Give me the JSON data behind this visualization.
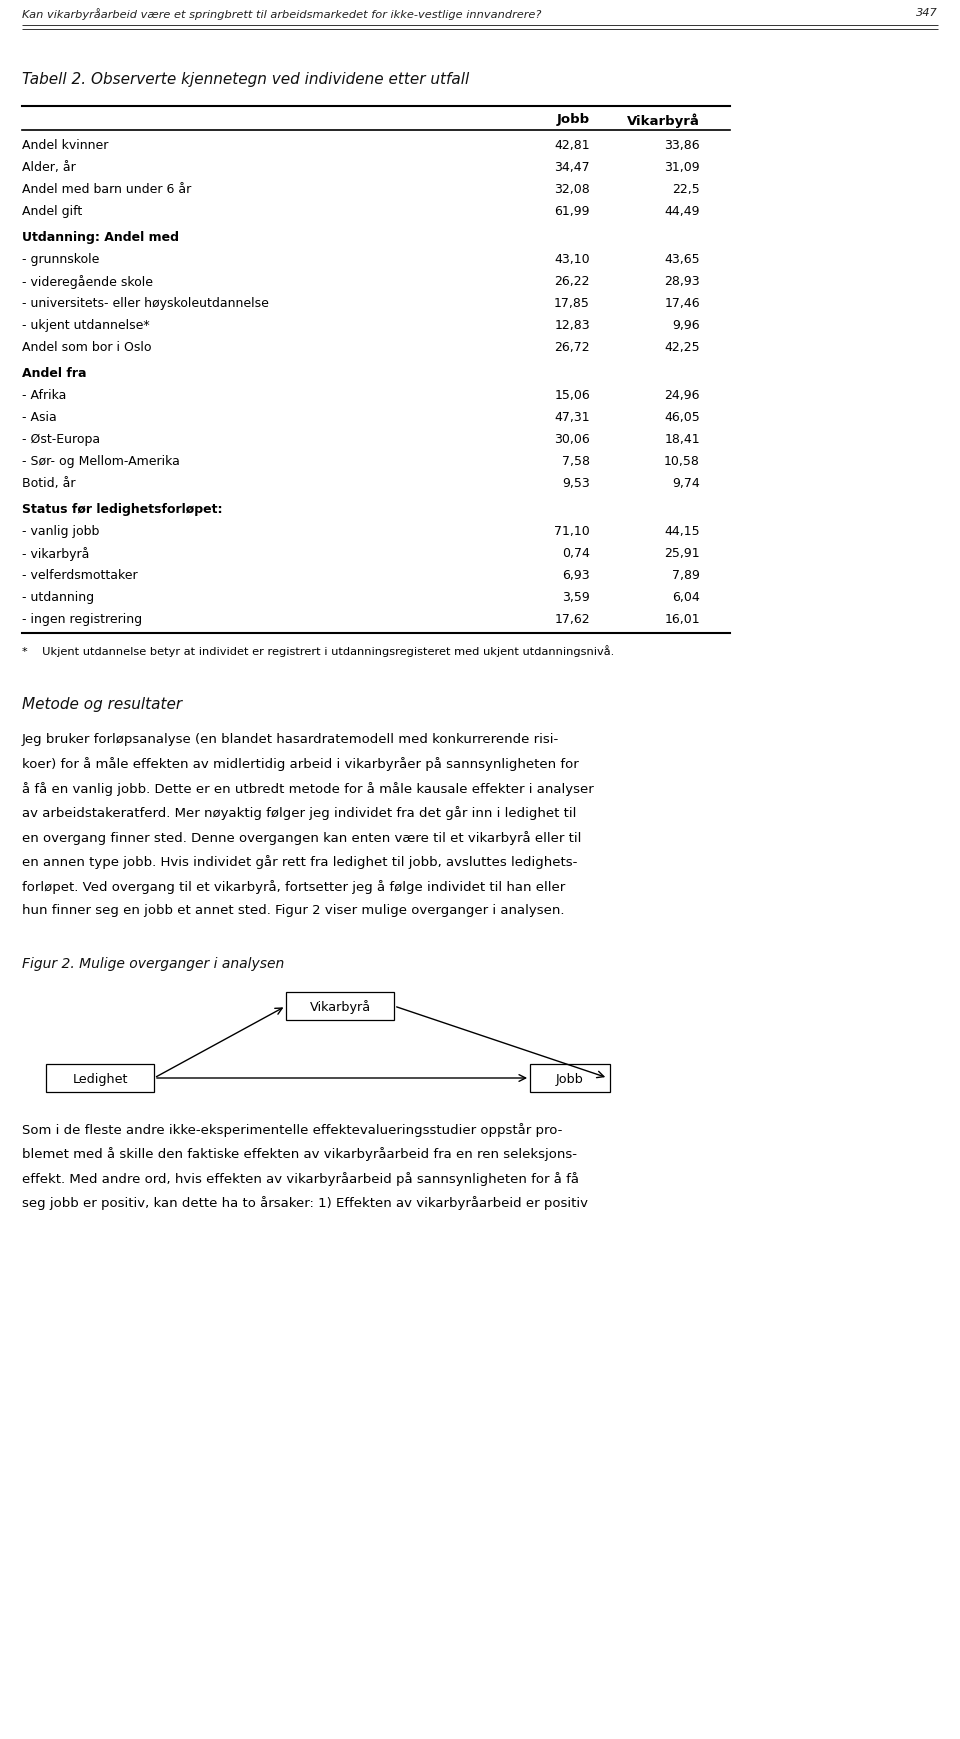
{
  "page_title": "Kan vikarbyråarbeid være et springbrett til arbeidsmarkedet for ikke-vestlige innvandrere?",
  "page_number": "347",
  "table_title": "Tabell 2. Observerte kjennetegn ved individene etter utfall",
  "col_headers": [
    "Jobb",
    "Vikarbyrå"
  ],
  "rows": [
    {
      "label": "Andel kvinner",
      "jobb": "42,81",
      "vikarbyrå": "33,86",
      "bold": false
    },
    {
      "label": "Alder, år",
      "jobb": "34,47",
      "vikarbyrå": "31,09",
      "bold": false
    },
    {
      "label": "Andel med barn under 6 år",
      "jobb": "32,08",
      "vikarbyrå": "22,5",
      "bold": false
    },
    {
      "label": "Andel gift",
      "jobb": "61,99",
      "vikarbyrå": "44,49",
      "bold": false
    },
    {
      "label": "Utdanning: Andel med",
      "jobb": "",
      "vikarbyrå": "",
      "bold": true
    },
    {
      "label": "- grunnskole",
      "jobb": "43,10",
      "vikarbyrå": "43,65",
      "bold": false
    },
    {
      "label": "- videregående skole",
      "jobb": "26,22",
      "vikarbyrå": "28,93",
      "bold": false
    },
    {
      "label": "- universitets- eller høyskoleutdannelse",
      "jobb": "17,85",
      "vikarbyrå": "17,46",
      "bold": false
    },
    {
      "label": "- ukjent utdannelse*",
      "jobb": "12,83",
      "vikarbyrå": "9,96",
      "bold": false
    },
    {
      "label": "Andel som bor i Oslo",
      "jobb": "26,72",
      "vikarbyrå": "42,25",
      "bold": false
    },
    {
      "label": "Andel fra",
      "jobb": "",
      "vikarbyrå": "",
      "bold": true
    },
    {
      "label": "- Afrika",
      "jobb": "15,06",
      "vikarbyrå": "24,96",
      "bold": false
    },
    {
      "label": "- Asia",
      "jobb": "47,31",
      "vikarbyrå": "46,05",
      "bold": false
    },
    {
      "label": "- Øst-Europa",
      "jobb": "30,06",
      "vikarbyrå": "18,41",
      "bold": false
    },
    {
      "label": "- Sør- og Mellom-Amerika",
      "jobb": "7,58",
      "vikarbyrå": "10,58",
      "bold": false
    },
    {
      "label": "Botid, år",
      "jobb": "9,53",
      "vikarbyrå": "9,74",
      "bold": false
    },
    {
      "label": "Status før ledighetsforløpet:",
      "jobb": "",
      "vikarbyrå": "",
      "bold": true
    },
    {
      "label": "- vanlig jobb",
      "jobb": "71,10",
      "vikarbyrå": "44,15",
      "bold": false
    },
    {
      "label": "- vikarbyrå",
      "jobb": "0,74",
      "vikarbyrå": "25,91",
      "bold": false
    },
    {
      "label": "- velferdsmottaker",
      "jobb": "6,93",
      "vikarbyrå": "7,89",
      "bold": false
    },
    {
      "label": "- utdanning",
      "jobb": "3,59",
      "vikarbyrå": "6,04",
      "bold": false
    },
    {
      "label": "- ingen registrering",
      "jobb": "17,62",
      "vikarbyrå": "16,01",
      "bold": false
    }
  ],
  "footnote": "*    Ukjent utdannelse betyr at individet er registrert i utdanningsregisteret med ukjent utdanningsnivå.",
  "section_heading": "Metode og resultater",
  "body_lines": [
    "Jeg bruker forløpsanalyse (en blandet hasardratemodell med konkurrerende risi-",
    "koer) for å måle effekten av midlertidig arbeid i vikarbyråer på sannsynligheten for",
    "å få en vanlig jobb. Dette er en utbredt metode for å måle kausale effekter i analyser",
    "av arbeidstakeratferd. Mer nøyaktig følger jeg individet fra det går inn i ledighet til",
    "en overgang finner sted. Denne overgangen kan enten være til et vikarbyrå eller til",
    "en annen type jobb. Hvis individet går rett fra ledighet til jobb, avsluttes ledighets-",
    "forløpet. Ved overgang til et vikarbyrå, fortsetter jeg å følge individet til han eller",
    "hun finner seg en jobb et annet sted. Figur 2 viser mulige overganger i analysen."
  ],
  "fig_caption": "Figur 2. Mulige overganger i analysen",
  "body2_lines": [
    "Som i de fleste andre ikke-eksperimentelle effektevalueringsstudier oppstår pro-",
    "blemet med å skille den faktiske effekten av vikarbyråarbeid fra en ren seleksjons-",
    "effekt. Med andre ord, hvis effekten av vikarbyråarbeid på sannsynligheten for å få",
    "seg jobb er positiv, kan dette ha to årsaker: 1) Effekten av vikarbyråarbeid er positiv"
  ],
  "bg_color": "#ffffff"
}
